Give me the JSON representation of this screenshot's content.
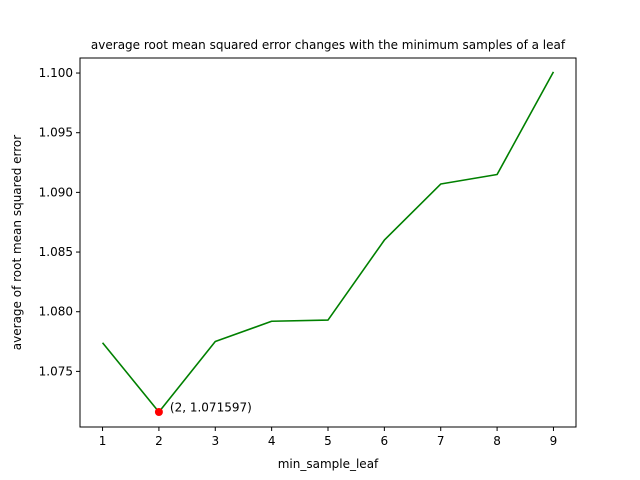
{
  "chart_data": {
    "type": "line",
    "title": "average root mean squared error changes with the minimum samples of a leaf",
    "xlabel": "min_sample_leaf",
    "ylabel": "average of root mean squared error",
    "x": [
      1,
      2,
      3,
      4,
      5,
      6,
      7,
      8,
      9
    ],
    "xticks": [
      "1",
      "2",
      "3",
      "4",
      "5",
      "6",
      "7",
      "8",
      "9"
    ],
    "yticks": [
      "1.075",
      "1.080",
      "1.085",
      "1.090",
      "1.095",
      "1.100"
    ],
    "ytick_values": [
      1.075,
      1.08,
      1.085,
      1.09,
      1.095,
      1.1
    ],
    "xlim": [
      0.6,
      9.4
    ],
    "ylim": [
      1.07034,
      1.10126
    ],
    "series": [
      {
        "values": [
          1.0774,
          1.071597,
          1.0775,
          1.0792,
          1.0793,
          1.086,
          1.0907,
          1.0915,
          1.1001
        ],
        "color": "#008000"
      }
    ],
    "highlight": {
      "x": 2,
      "y": 1.071597,
      "color": "#ff0000",
      "label": "(2, 1.071597)"
    },
    "grid": false
  }
}
